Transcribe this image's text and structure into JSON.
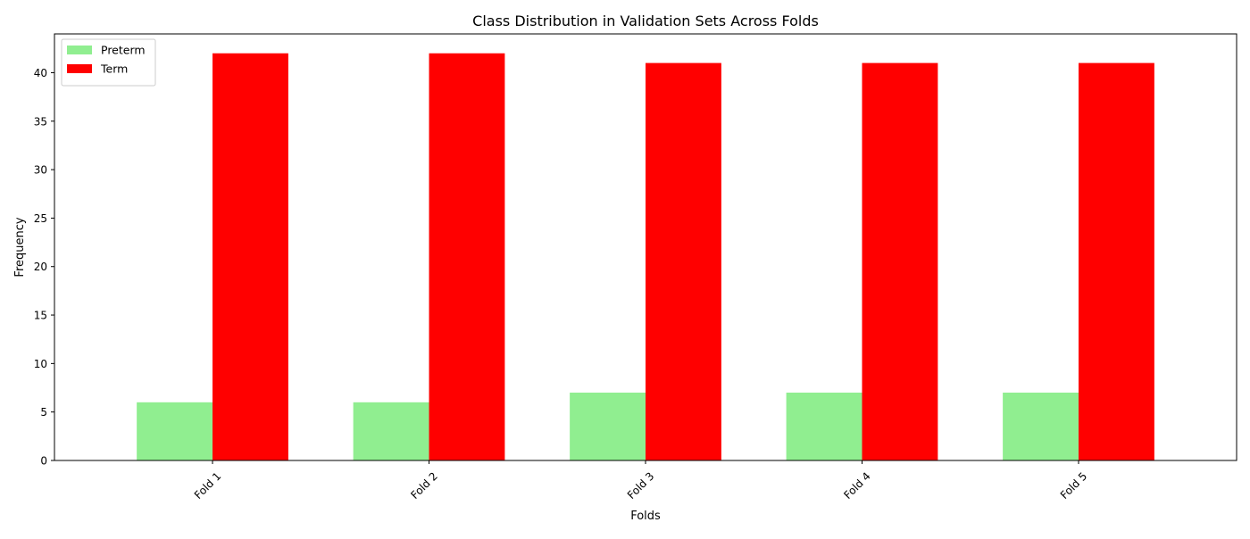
{
  "chart_data": {
    "type": "bar",
    "title": "Class Distribution in Validation Sets Across Folds",
    "xlabel": "Folds",
    "ylabel": "Frequency",
    "categories": [
      "Fold 1",
      "Fold 2",
      "Fold 3",
      "Fold 4",
      "Fold 5"
    ],
    "series": [
      {
        "name": "Preterm",
        "values": [
          6,
          6,
          7,
          7,
          7
        ],
        "color": "#90ee90"
      },
      {
        "name": "Term",
        "values": [
          42,
          42,
          41,
          41,
          41
        ],
        "color": "#ff0000"
      }
    ],
    "ylim": [
      0,
      44
    ],
    "yticks": [
      0,
      5,
      10,
      15,
      20,
      25,
      30,
      35,
      40
    ],
    "grid": false,
    "legend_position": "top-left",
    "xtick_rotation": -45
  }
}
